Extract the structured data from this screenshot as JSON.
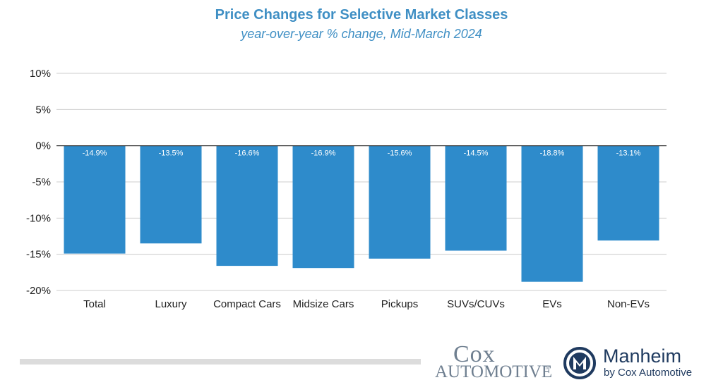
{
  "chart_data": {
    "type": "bar",
    "title": "Price Changes for Selective Market Classes",
    "subtitle": "year-over-year % change, Mid-March 2024",
    "categories": [
      "Total",
      "Luxury",
      "Compact Cars",
      "Midsize Cars",
      "Pickups",
      "SUVs/CUVs",
      "EVs",
      "Non-EVs"
    ],
    "values": [
      -14.9,
      -13.5,
      -16.6,
      -16.9,
      -15.6,
      -14.5,
      -18.8,
      -13.1
    ],
    "data_labels": [
      "-14.9%",
      "-13.5%",
      "-16.6%",
      "-16.9%",
      "-15.6%",
      "-14.5%",
      "-18.8%",
      "-13.1%"
    ],
    "yticks": [
      10,
      5,
      0,
      -5,
      -10,
      -15,
      -20
    ],
    "ytick_labels": [
      "10%",
      "5%",
      "0%",
      "-5%",
      "-10%",
      "-15%",
      "-20%"
    ],
    "ylim": [
      -20,
      10
    ],
    "grid": true,
    "bar_color": "#2e8bcb"
  },
  "branding": {
    "cox_top": "Cox",
    "cox_bottom": "AUTOMOTIVE",
    "cox_tm": "TM",
    "manheim_name": "Manheim",
    "manheim_sub": "by Cox Automotive"
  },
  "colors": {
    "title": "#3f8fc4",
    "grid": "#cccccc",
    "zero_line": "#333333",
    "logo_gray": "#6f7f90",
    "manheim_navy": "#1f3a5f"
  }
}
